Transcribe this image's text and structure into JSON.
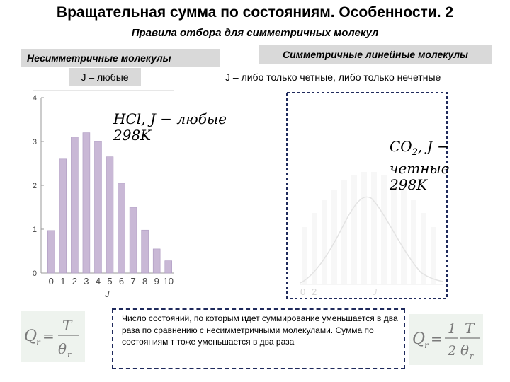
{
  "title": "Вращательная сумма по состояниям. Особенности. 2",
  "subtitle": "Правила отбора для симметричных молекул",
  "left_header": "Несимметричные  молекулы",
  "right_header": "Симметричные  линейные молекулы",
  "left_sub": "J – любые",
  "right_sub": "J – либо  только четные, либо только нечетные",
  "hcl_eq_line1": "HCl, J − любые",
  "hcl_eq_line2": "298K",
  "co2_eq_line1": "CO",
  "co2_eq_sub": "2",
  "co2_eq_rest": ", J − четные",
  "co2_eq_line2": "298K",
  "info_text": "Число состояний, по которым идет суммирование уменьшается в два раза по сравнению с несимметричными молекулами. Сумма по состояниям т тоже уменьшается в два раза",
  "colors": {
    "bar": "#c9b8d6",
    "bar_edge": "#ad9ac0",
    "dashed_border": "#1f2a5c",
    "panel": "#d9d9d9"
  },
  "chart_data": [
    {
      "type": "bar",
      "categories": [
        "0",
        "1",
        "2",
        "3",
        "4",
        "5",
        "6",
        "7",
        "8",
        "9",
        "10"
      ],
      "values": [
        0.97,
        2.6,
        3.1,
        3.2,
        3.0,
        2.65,
        2.05,
        1.5,
        0.98,
        0.55,
        0.28
      ],
      "xlabel": "J",
      "ylabel": "",
      "ylim": [
        0,
        4
      ],
      "yticks": [
        "0",
        "1",
        "2",
        "3",
        "4"
      ],
      "grid": false
    },
    {
      "type": "bar",
      "categories": [
        "0",
        "2"
      ],
      "xlabel": "J",
      "note": "faded: only even J bars present with smooth envelope curve"
    }
  ]
}
